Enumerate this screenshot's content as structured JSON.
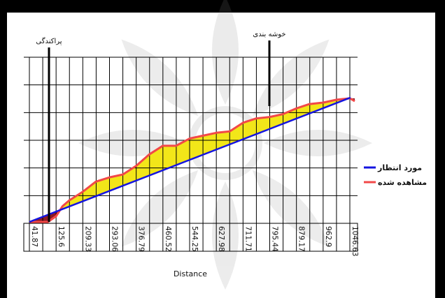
{
  "chart_data": {
    "type": "area",
    "xlabel": "Distance",
    "ylabel": "",
    "x_ticks": [
      "41.87",
      "125.6",
      "209.33",
      "293.06",
      "376.79",
      "460.52",
      "544.25",
      "627.98",
      "711.71",
      "795.44",
      "879.17",
      "962.9",
      "1046.63"
    ],
    "xlim": [
      41.87,
      1046.63
    ],
    "ylim": [
      0,
      1
    ],
    "grid": true,
    "legend_position": "right",
    "series": [
      {
        "name": "مورد انتظار",
        "color": "#1414e0",
        "x": [
          41.87,
          1046.63
        ],
        "values": [
          0.0,
          0.86
        ]
      },
      {
        "name": "مشاهده شده",
        "color": "#f24848",
        "x": [
          41.87,
          100,
          125.6,
          146,
          167,
          209.33,
          250,
          293.06,
          335,
          376.79,
          418,
          460.52,
          502,
          544.25,
          586,
          627.98,
          670,
          711.71,
          753,
          795.44,
          837,
          879.17,
          920,
          962.9,
          1005,
          1046.63,
          1062
        ],
        "values": [
          0.0,
          0.0,
          0.04,
          0.11,
          0.15,
          0.21,
          0.28,
          0.31,
          0.33,
          0.39,
          0.47,
          0.53,
          0.53,
          0.58,
          0.6,
          0.62,
          0.63,
          0.69,
          0.72,
          0.73,
          0.75,
          0.79,
          0.82,
          0.83,
          0.85,
          0.86,
          0.84
        ]
      }
    ],
    "annotations": [
      {
        "text": "پراکندگی",
        "x": 104
      },
      {
        "text": "خوشه بندی",
        "x": 795
      }
    ]
  }
}
